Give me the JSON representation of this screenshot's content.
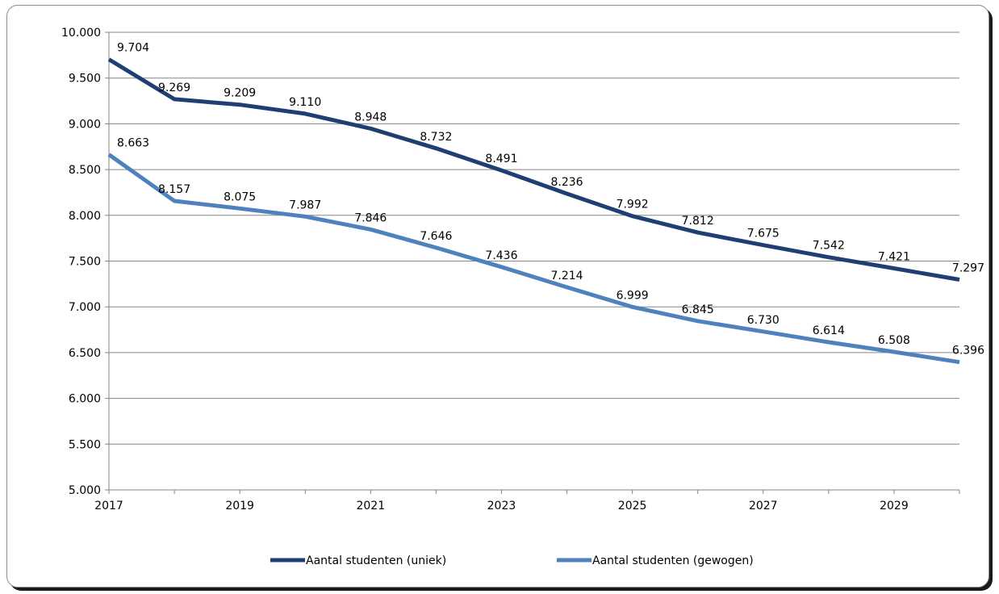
{
  "chart_data": {
    "type": "line",
    "x": [
      2017,
      2018,
      2019,
      2020,
      2021,
      2022,
      2023,
      2024,
      2025,
      2026,
      2027,
      2028,
      2029,
      2030
    ],
    "x_tick_labels": [
      "2017",
      "2019",
      "2021",
      "2023",
      "2025",
      "2027",
      "2029"
    ],
    "y_tick_labels": [
      "5.000",
      "5.500",
      "6.000",
      "6.500",
      "7.000",
      "7.500",
      "8.000",
      "8.500",
      "9.000",
      "9.500",
      "10.000"
    ],
    "ylim": [
      5000,
      10000
    ],
    "grid": true,
    "legend_position": "bottom",
    "series": [
      {
        "name": "Aantal studenten (uniek)",
        "color": "#1f3f73",
        "values": [
          9704,
          9269,
          9209,
          9110,
          8948,
          8732,
          8491,
          8236,
          7992,
          7812,
          7675,
          7542,
          7421,
          7297
        ],
        "labels": [
          "9.704",
          "9.269",
          "9.209",
          "9.110",
          "8.948",
          "8.732",
          "8.491",
          "8.236",
          "7.992",
          "7.812",
          "7.675",
          "7.542",
          "7.421",
          "7.297"
        ]
      },
      {
        "name": "Aantal studenten (gewogen)",
        "color": "#4f81bd",
        "values": [
          8663,
          8157,
          8075,
          7987,
          7846,
          7646,
          7436,
          7214,
          6999,
          6845,
          6730,
          6614,
          6508,
          6396
        ],
        "labels": [
          "8.663",
          "8.157",
          "8.075",
          "7.987",
          "7.846",
          "7.646",
          "7.436",
          "7.214",
          "6.999",
          "6.845",
          "6.730",
          "6.614",
          "6.508",
          "6.396"
        ]
      }
    ]
  }
}
